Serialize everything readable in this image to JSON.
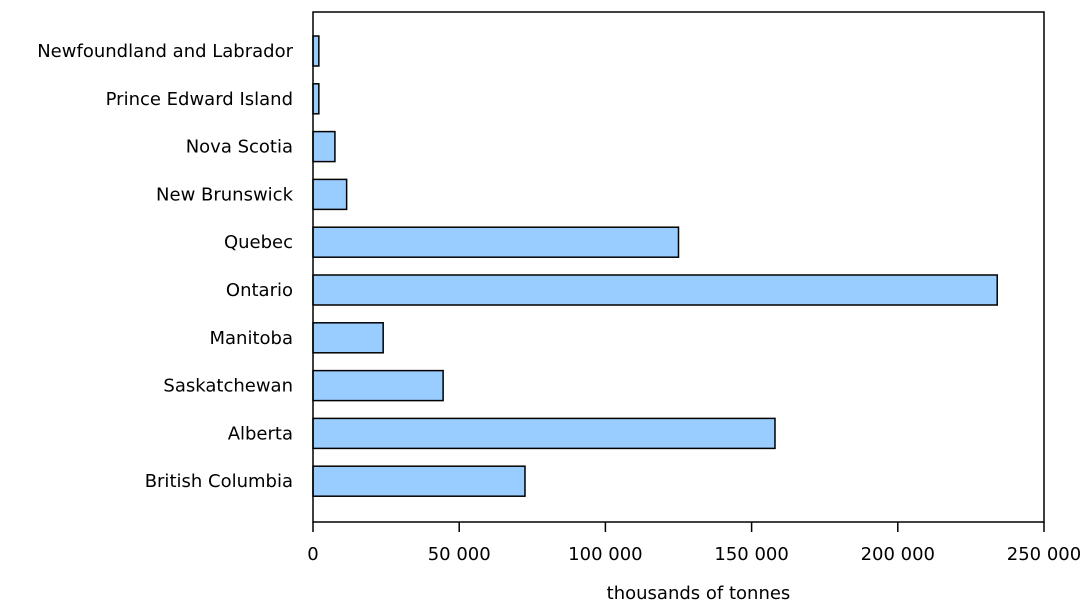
{
  "chart_data": {
    "type": "bar",
    "orientation": "horizontal",
    "categories": [
      "Newfoundland and Labrador",
      "Prince Edward Island",
      "Nova Scotia",
      "New Brunswick",
      "Quebec",
      "Ontario",
      "Manitoba",
      "Saskatchewan",
      "Alberta",
      "British Columbia"
    ],
    "values": [
      2000,
      2000,
      7500,
      11500,
      125000,
      234000,
      24000,
      44500,
      158000,
      72500
    ],
    "xlabel": "thousands of tonnes",
    "xlim": [
      0,
      250000
    ],
    "xticks": [
      0,
      50000,
      100000,
      150000,
      200000,
      250000
    ],
    "xtick_labels": [
      "0",
      "50 000",
      "100 000",
      "150 000",
      "200 000",
      "250 000"
    ],
    "grid": false,
    "colors": {
      "bar_fill": "#99ccff",
      "bar_stroke": "#000000",
      "axis": "#000000"
    }
  }
}
